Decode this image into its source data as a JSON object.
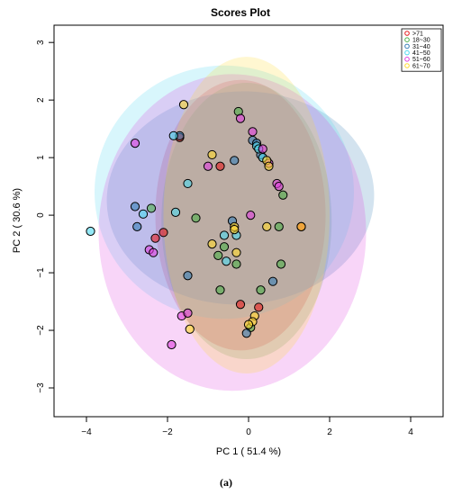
{
  "chart_data": {
    "type": "scatter",
    "title": "Scores Plot",
    "xlabel": "PC 1 ( 51.4 %)",
    "ylabel": "PC 2 ( 30.6 %)",
    "xlim": [
      -4.8,
      4.8
    ],
    "ylim": [
      -3.5,
      3.3
    ],
    "x_ticks": [
      -4,
      -2,
      0,
      2,
      4
    ],
    "y_ticks": [
      -3,
      -2,
      -1,
      0,
      1,
      2,
      3
    ],
    "grid": false,
    "legend_position": "top-right",
    "caption": "(a)",
    "series": [
      {
        "name": ">71",
        "color": "#e41a1c",
        "points": [
          [
            -2.1,
            -0.3
          ],
          [
            -2.3,
            -0.4
          ],
          [
            -0.7,
            0.85
          ],
          [
            -1.7,
            1.35
          ],
          [
            -0.2,
            -1.55
          ],
          [
            0.25,
            -1.6
          ],
          [
            1.3,
            -0.2
          ]
        ],
        "ellipse": {
          "cx": -0.2,
          "cy": 0.0,
          "rx": 2.1,
          "ry": 2.35,
          "angle": 0
        }
      },
      {
        "name": "18~30",
        "color": "#4daf4a",
        "points": [
          [
            -0.25,
            1.8
          ],
          [
            -2.4,
            0.12
          ],
          [
            -1.3,
            -0.05
          ],
          [
            -0.75,
            -0.7
          ],
          [
            -0.6,
            -0.55
          ],
          [
            -0.3,
            -0.85
          ],
          [
            -0.7,
            -1.3
          ],
          [
            0.05,
            -1.95
          ],
          [
            0.3,
            -1.3
          ],
          [
            0.75,
            -0.2
          ],
          [
            0.8,
            -0.85
          ],
          [
            0.85,
            0.35
          ]
        ],
        "ellipse": {
          "cx": -0.05,
          "cy": -0.1,
          "rx": 2.1,
          "ry": 2.4,
          "angle": 0
        }
      },
      {
        "name": "31~40",
        "color": "#377eb8",
        "points": [
          [
            -2.8,
            0.15
          ],
          [
            -2.75,
            -0.2
          ],
          [
            -1.7,
            1.38
          ],
          [
            -0.4,
            -0.1
          ],
          [
            0.1,
            1.3
          ],
          [
            0.2,
            1.25
          ],
          [
            0.3,
            1.05
          ],
          [
            -1.5,
            -1.05
          ],
          [
            0.6,
            -1.15
          ],
          [
            -0.05,
            -2.05
          ],
          [
            -0.35,
            0.95
          ]
        ],
        "ellipse": {
          "cx": -0.2,
          "cy": 0.3,
          "rx": 3.3,
          "ry": 1.85,
          "angle": -3
        }
      },
      {
        "name": "41~50",
        "color": "#4dd8f0",
        "points": [
          [
            -3.9,
            -0.28
          ],
          [
            -2.6,
            0.02
          ],
          [
            -1.85,
            1.38
          ],
          [
            -1.5,
            0.55
          ],
          [
            -1.8,
            0.05
          ],
          [
            -0.6,
            -0.35
          ],
          [
            -0.55,
            -0.8
          ],
          [
            -0.3,
            -0.35
          ],
          [
            0.2,
            1.2
          ],
          [
            0.25,
            1.15
          ],
          [
            0.35,
            1.0
          ]
        ],
        "ellipse": {
          "cx": -0.6,
          "cy": 0.4,
          "rx": 3.2,
          "ry": 2.2,
          "angle": 0
        }
      },
      {
        "name": "51~60",
        "color": "#e040e0",
        "points": [
          [
            -2.8,
            1.25
          ],
          [
            -2.45,
            -0.6
          ],
          [
            -2.35,
            -0.65
          ],
          [
            -1.0,
            0.85
          ],
          [
            -1.9,
            -2.25
          ],
          [
            -1.65,
            -1.75
          ],
          [
            -1.5,
            -1.7
          ],
          [
            0.05,
            0.0
          ],
          [
            0.1,
            1.45
          ],
          [
            -0.2,
            1.68
          ],
          [
            0.35,
            1.15
          ],
          [
            0.5,
            0.9
          ],
          [
            0.7,
            0.55
          ],
          [
            0.75,
            0.5
          ]
        ],
        "ellipse": {
          "cx": -0.4,
          "cy": -0.3,
          "rx": 3.3,
          "ry": 2.75,
          "angle": 0
        }
      },
      {
        "name": "61~70",
        "color": "#ffd92f",
        "points": [
          [
            -1.6,
            1.92
          ],
          [
            -0.9,
            1.05
          ],
          [
            -0.9,
            -0.5
          ],
          [
            -0.35,
            -0.2
          ],
          [
            -0.35,
            -0.25
          ],
          [
            -0.3,
            -0.65
          ],
          [
            0.15,
            -1.75
          ],
          [
            0.45,
            -0.2
          ],
          [
            0.45,
            0.95
          ],
          [
            0.5,
            0.85
          ],
          [
            1.3,
            -0.2
          ],
          [
            -1.45,
            -1.98
          ],
          [
            0.1,
            -1.85
          ],
          [
            0.0,
            -1.9
          ]
        ],
        "ellipse": {
          "cx": -0.05,
          "cy": 0.0,
          "rx": 2.05,
          "ry": 2.75,
          "angle": 0
        }
      }
    ]
  }
}
